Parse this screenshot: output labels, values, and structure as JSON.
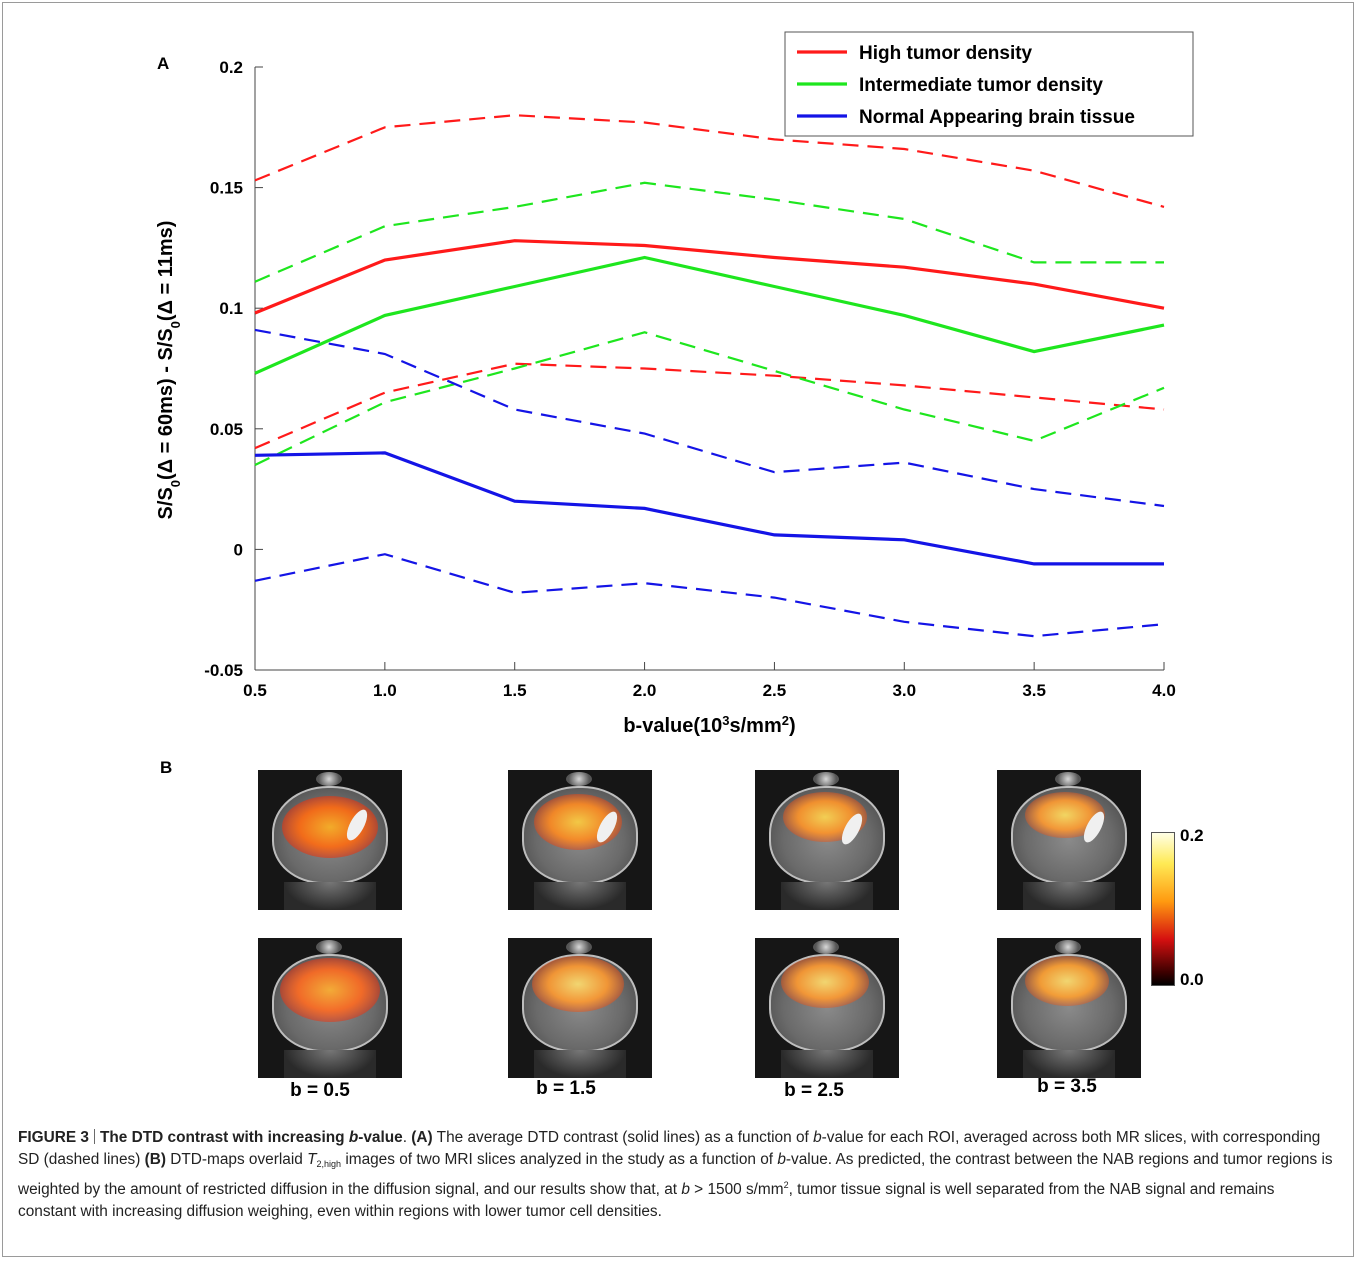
{
  "panelA_label": "A",
  "panelB_label": "B",
  "chart_data": {
    "type": "line",
    "ylabel_html": "S/S<tspan baseline-shift=\"sub\" font-size=\"13\">0</tspan>(Δ = 60ms) - S/S<tspan baseline-shift=\"sub\" font-size=\"13\">0</tspan>(Δ = 11ms)",
    "ylabel": "S/S0(Δ = 60ms) - S/S0(Δ = 11ms)",
    "xlabel": "b-value(10³s/mm²)",
    "x": [
      0.5,
      1.0,
      1.5,
      2.0,
      2.5,
      3.0,
      3.5,
      4.0
    ],
    "xticks": [
      "0.5",
      "1.0",
      "1.5",
      "2.0",
      "2.5",
      "3.0",
      "3.5",
      "4.0"
    ],
    "yticks": [
      "-0.05",
      "0",
      "0.05",
      "0.1",
      "0.15",
      "0.2"
    ],
    "ylim": [
      -0.05,
      0.2
    ],
    "xlim": [
      0.5,
      4.0
    ],
    "series": [
      {
        "name": "High tumor density",
        "color": "#ff1a1a",
        "style": "solid",
        "values": [
          0.098,
          0.12,
          0.128,
          0.126,
          0.121,
          0.117,
          0.11,
          0.1
        ]
      },
      {
        "color": "#ff1a1a",
        "style": "dashed",
        "values": [
          0.153,
          0.175,
          0.18,
          0.177,
          0.17,
          0.166,
          0.157,
          0.142
        ]
      },
      {
        "color": "#ff1a1a",
        "style": "dashed",
        "values": [
          0.042,
          0.065,
          0.077,
          0.075,
          0.072,
          0.068,
          0.063,
          0.058
        ]
      },
      {
        "name": "Intermediate tumor density",
        "color": "#1ee61e",
        "style": "solid",
        "values": [
          0.073,
          0.097,
          0.109,
          0.121,
          0.109,
          0.097,
          0.082,
          0.093
        ]
      },
      {
        "color": "#1ee61e",
        "style": "dashed",
        "values": [
          0.111,
          0.134,
          0.142,
          0.152,
          0.145,
          0.137,
          0.119,
          0.119
        ]
      },
      {
        "color": "#1ee61e",
        "style": "dashed",
        "values": [
          0.035,
          0.061,
          0.075,
          0.09,
          0.074,
          0.058,
          0.045,
          0.067
        ]
      },
      {
        "name": "Normal Appearing brain tissue",
        "color": "#1414e6",
        "style": "solid",
        "values": [
          0.039,
          0.04,
          0.02,
          0.017,
          0.006,
          0.004,
          -0.006,
          -0.006
        ]
      },
      {
        "color": "#1414e6",
        "style": "dashed",
        "values": [
          0.091,
          0.081,
          0.058,
          0.048,
          0.032,
          0.036,
          0.025,
          0.018
        ]
      },
      {
        "color": "#1414e6",
        "style": "dashed",
        "values": [
          -0.013,
          -0.002,
          -0.018,
          -0.014,
          -0.02,
          -0.03,
          -0.036,
          -0.031
        ]
      }
    ],
    "legend": [
      "High tumor density",
      "Intermediate tumor density",
      "Normal Appearing brain tissue"
    ],
    "legend_position": "top-right",
    "grid": false
  },
  "panelB": {
    "b_labels": [
      "b = 0.5",
      "b = 1.5",
      "b = 2.5",
      "b = 3.5"
    ],
    "colorbar_max": "0.2",
    "colorbar_min": "0.0"
  },
  "caption": {
    "fig": "FIGURE 3",
    "title_pre": "The DTD contrast with increasing ",
    "title_b": "b",
    "title_post": "-value",
    "A_label": "(A)",
    "A_text1": " The average DTD contrast (solid lines) as a function of ",
    "b1": "b",
    "A_text2": "-value for each ROI, averaged across both MR slices, with corresponding SD (dashed lines) ",
    "B_label": "(B)",
    "B_text1": " DTD-maps overlaid ",
    "T": "T",
    "T_sub": "2,high",
    "B_text2": " images of two MRI slices analyzed in the study as a function of ",
    "b2": "b",
    "B_text3": "-value. As predicted, the contrast between the NAB regions and tumor regions is weighted by the amount of restricted diffusion in the diffusion signal, and our results show that, at ",
    "b3": "b",
    "B_text4": " > 1500 s/mm",
    "sq": "2",
    "B_text5": ", tumor tissue signal is well separated from the NAB signal and remains constant with increasing diffusion weighing, even within regions with lower tumor cell densities."
  }
}
